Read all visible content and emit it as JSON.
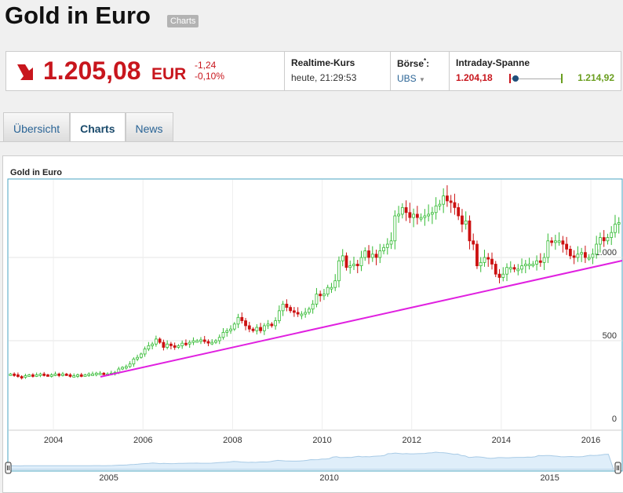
{
  "header": {
    "title": "Gold in Euro",
    "badge": "Charts"
  },
  "quote": {
    "price": "1.205,08",
    "currency": "EUR",
    "change_abs": "-1,24",
    "change_pct": "-0,10%",
    "realtime_label": "Realtime-Kurs",
    "realtime_time": "heute, 21:29:53",
    "exchange_label": "Börse",
    "exchange_sup": "*",
    "exchange_colon": ":",
    "exchange_value": "UBS",
    "range_label": "Intraday-Spanne",
    "range_low": "1.204,18",
    "range_high": "1.214,92",
    "range_position": 0.06,
    "colors": {
      "down": "#c8161d",
      "up": "#6a9e1f"
    }
  },
  "tabs": [
    {
      "label": "Übersicht"
    },
    {
      "label": "Charts"
    },
    {
      "label": "News"
    }
  ],
  "chart_data": {
    "type": "candlestick",
    "title": "Gold in Euro",
    "x_start": 2003.0,
    "x_end": 2016.7,
    "ylim": [
      0,
      1230
    ],
    "y_ticks": [
      {
        "v": 0,
        "label": "0"
      },
      {
        "v": 500,
        "label": "500"
      },
      {
        "v": 1000,
        "label": "1.000"
      }
    ],
    "x_ticks": [
      {
        "v": 2004,
        "label": "2004"
      },
      {
        "v": 2006,
        "label": "2006"
      },
      {
        "v": 2008,
        "label": "2008"
      },
      {
        "v": 2010,
        "label": "2010"
      },
      {
        "v": 2012,
        "label": "2012"
      },
      {
        "v": 2014,
        "label": "2014"
      },
      {
        "v": 2016,
        "label": "2016"
      }
    ],
    "monthly_close": [
      300,
      295,
      285,
      280,
      290,
      295,
      290,
      295,
      300,
      295,
      290,
      295,
      300,
      295,
      300,
      295,
      290,
      290,
      295,
      290,
      295,
      300,
      300,
      305,
      305,
      300,
      300,
      305,
      310,
      330,
      340,
      345,
      360,
      390,
      400,
      420,
      450,
      470,
      480,
      510,
      490,
      460,
      480,
      470,
      460,
      470,
      485,
      480,
      490,
      500,
      500,
      505,
      495,
      490,
      490,
      500,
      520,
      550,
      560,
      570,
      600,
      640,
      620,
      590,
      570,
      560,
      580,
      560,
      590,
      600,
      590,
      620,
      680,
      720,
      700,
      680,
      670,
      660,
      660,
      670,
      690,
      720,
      780,
      770,
      780,
      820,
      820,
      860,
      980,
      1010,
      940,
      950,
      960,
      950,
      1000,
      1040,
      1000,
      1020,
      1000,
      1040,
      1060,
      1080,
      1100,
      1250,
      1260,
      1300,
      1270,
      1240,
      1260,
      1240,
      1240,
      1250,
      1260,
      1270,
      1310,
      1320,
      1370,
      1340,
      1330,
      1300,
      1250,
      1200,
      1220,
      1100,
      1080,
      950,
      970,
      1000,
      990,
      960,
      900,
      880,
      900,
      940,
      940,
      930,
      930,
      950,
      960,
      960,
      960,
      980,
      970,
      1000,
      1100,
      1090,
      1100,
      1100,
      1080,
      1050,
      1010,
      1000,
      1020,
      1030,
      1000,
      1000,
      1020,
      1080,
      1120,
      1100,
      1120,
      1150,
      1200,
      1210
    ],
    "trendline": {
      "from": [
        2005.05,
        283
      ],
      "to": [
        2016.7,
        981
      ],
      "color": "#e020e0"
    },
    "navigator": {
      "labels": [
        {
          "v": 2005,
          "label": "2005"
        },
        {
          "v": 2010,
          "label": "2010"
        },
        {
          "v": 2015,
          "label": "2015"
        }
      ]
    },
    "colors": {
      "up": "#33bb33",
      "down": "#cc1111"
    }
  }
}
